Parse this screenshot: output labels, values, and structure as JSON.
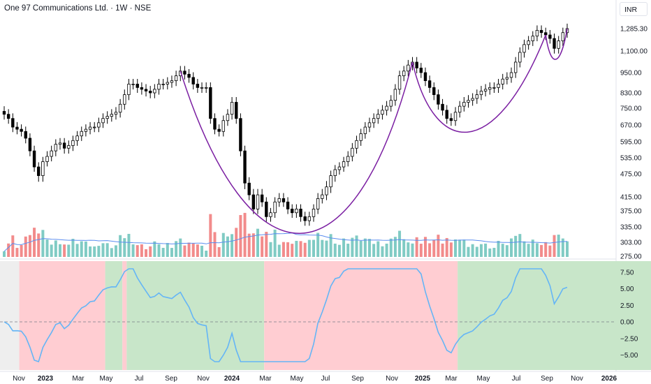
{
  "title": "One 97 Communications Ltd. · 1W · NSE",
  "currency": "INR",
  "colors": {
    "up_candle": "#ffffff",
    "down_candle": "#000000",
    "candle_border": "#000000",
    "volume_up": "#80cbc4",
    "volume_down": "#f28b8b",
    "volume_ma": "#5b8def",
    "cup_curve": "#7b1fa2",
    "oscillator_line": "#64b5f6",
    "zone_bearish": "#ffcdd2",
    "zone_bullish": "#c8e6c9",
    "zone_neutral": "#eeeeee"
  },
  "chart_data": [
    {
      "type": "candlestick",
      "series_name": "One 97 Communications Ltd.",
      "y_scale": "log",
      "y_ticks": [
        275,
        303,
        335,
        375,
        415,
        475,
        535,
        595,
        670,
        750,
        830,
        950,
        1100,
        1285.3
      ],
      "y_tick_labels": [
        "275.00",
        "303.00",
        "335.00",
        "375.00",
        "415.00",
        "475.00",
        "535.00",
        "595.00",
        "670.00",
        "750.00",
        "830.00",
        "950.00",
        "1,100.00",
        "1,285.30"
      ],
      "last_price": 1285.3,
      "x_axis_labels": [
        "Nov",
        "2023",
        "Mar",
        "May",
        "Jul",
        "Sep",
        "Nov",
        "2024",
        "Mar",
        "May",
        "Jul",
        "Sep",
        "Nov",
        "2025",
        "Mar",
        "May",
        "Jul",
        "Sep",
        "Nov",
        "2026"
      ],
      "weekly_closes": [
        720,
        700,
        660,
        650,
        640,
        610,
        560,
        500,
        470,
        520,
        540,
        560,
        585,
        590,
        570,
        580,
        600,
        620,
        640,
        650,
        660,
        660,
        680,
        700,
        710,
        720,
        730,
        770,
        820,
        880,
        880,
        860,
        850,
        840,
        830,
        850,
        880,
        880,
        890,
        900,
        930,
        960,
        940,
        920,
        880,
        860,
        860,
        860,
        700,
        650,
        640,
        690,
        720,
        780,
        700,
        560,
        450,
        420,
        380,
        420,
        400,
        360,
        370,
        400,
        410,
        400,
        380,
        370,
        380,
        360,
        350,
        360,
        380,
        410,
        420,
        440,
        470,
        490,
        500,
        520,
        540,
        570,
        600,
        630,
        660,
        680,
        700,
        720,
        740,
        760,
        790,
        850,
        930,
        960,
        1000,
        1020,
        980,
        950,
        900,
        860,
        820,
        770,
        740,
        700,
        690,
        730,
        760,
        780,
        790,
        800,
        820,
        840,
        850,
        860,
        860,
        880,
        910,
        920,
        950,
        1020,
        1090,
        1150,
        1180,
        1220,
        1270,
        1250,
        1230,
        1200,
        1120,
        1180,
        1250,
        1285.3
      ]
    },
    {
      "type": "area",
      "panel": "oscillator",
      "y_ticks": [
        -5,
        -2.5,
        0,
        2.5,
        5,
        7.5
      ],
      "y_tick_labels": [
        "−5.00",
        "−2.50",
        "0.00",
        "2.50",
        "5.00",
        "7.50"
      ],
      "zero_line": 0,
      "zones": [
        {
          "state": "neutral",
          "from_week": 0,
          "to_week": 4
        },
        {
          "state": "bearish",
          "from_week": 4,
          "to_week": 24
        },
        {
          "state": "bullish",
          "from_week": 24,
          "to_week": 28
        },
        {
          "state": "bearish",
          "from_week": 28,
          "to_week": 29
        },
        {
          "state": "bullish",
          "from_week": 29,
          "to_week": 61
        },
        {
          "state": "bearish",
          "from_week": 61,
          "to_week": 106
        },
        {
          "state": "bullish",
          "from_week": 106,
          "to_week": 162
        }
      ]
    }
  ]
}
